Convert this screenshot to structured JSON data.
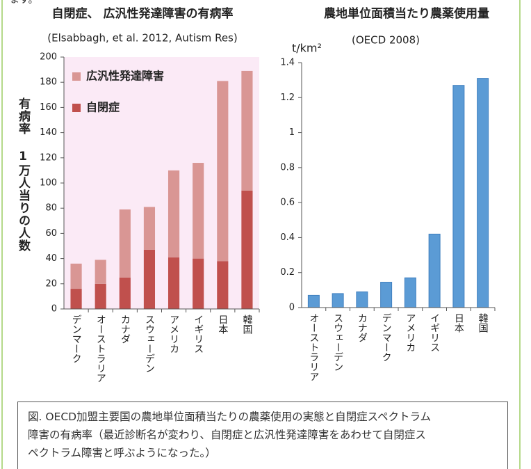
{
  "top_text": "ます。",
  "chart_data": [
    {
      "type": "stacked_bar",
      "title": "自閉症、 広汎性発達障害の有病率",
      "subtitle": "(Elsabbagh, et al. 2012, Autism Res)",
      "y_label": "有病率 1万人当りの人数",
      "categories": [
        "デンマーク",
        "オーストラリア",
        "カナダ",
        "スウェーデン",
        "アメリカ",
        "イギリス",
        "日本",
        "韓国"
      ],
      "series": [
        {
          "name": "自閉症",
          "color": "#c0504d",
          "values": [
            16,
            20,
            25,
            47,
            41,
            40,
            38,
            94
          ]
        },
        {
          "name": "広汎性発達障害",
          "color": "#d99694",
          "values": [
            20,
            19,
            54,
            34,
            69,
            76,
            143,
            95
          ]
        }
      ],
      "ylim": [
        0,
        200
      ],
      "yticks": [
        0,
        20,
        40,
        60,
        80,
        100,
        120,
        140,
        160,
        180,
        200
      ],
      "legend": "upper left",
      "background": "#fbeaf6"
    },
    {
      "type": "bar",
      "title": "農地単位面積当たり農薬使用量",
      "subtitle": "(OECD 2008)",
      "y_label": "t/km²",
      "categories": [
        "オーストラリア",
        "スウェーデン",
        "カナダ",
        "デンマーク",
        "アメリカ",
        "イギリス",
        "日本",
        "韓国"
      ],
      "values": [
        0.07,
        0.08,
        0.09,
        0.145,
        0.17,
        0.42,
        1.27,
        1.31
      ],
      "color": "#5b9bd5",
      "ylim": [
        0,
        1.4
      ],
      "yticks": [
        0,
        0.2,
        0.4,
        0.6,
        0.8,
        1,
        1.2,
        1.4
      ]
    }
  ],
  "caption": [
    "図. OECD加盟主要国の農地単位面積当たりの農薬使用の実態と自閉症スペクトラム",
    "障害の有病率（最近診断名が変わり、自閉症と広汎性発達障害をあわせて自閉症ス",
    "ペクトラム障害と呼ぶようになった。）"
  ]
}
